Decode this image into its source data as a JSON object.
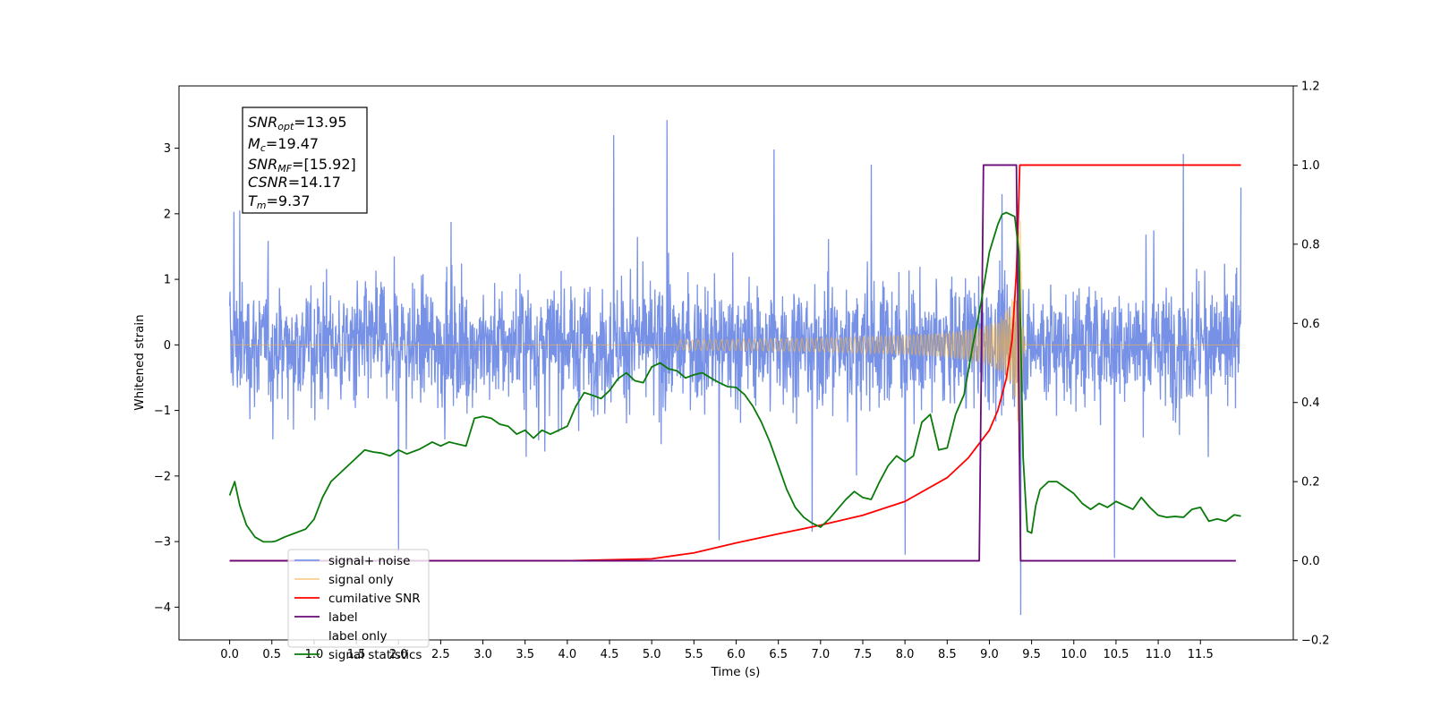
{
  "chart_data": {
    "type": "line",
    "xlabel": "Time (s)",
    "ylabel": "Whitened strain",
    "xlim": [
      -0.6,
      12.6
    ],
    "ylim": [
      -4.5,
      3.95
    ],
    "y2lim": [
      -0.2,
      1.2
    ],
    "x_ticks": [
      "0.0",
      "0.5",
      "1.0",
      "1.5",
      "2.0",
      "2.5",
      "3.0",
      "3.5",
      "4.0",
      "4.5",
      "5.0",
      "5.5",
      "6.0",
      "6.5",
      "7.0",
      "7.5",
      "8.0",
      "8.5",
      "9.0",
      "9.5",
      "10.0",
      "10.5",
      "11.0",
      "11.5"
    ],
    "y_ticks": [
      "3",
      "2",
      "1",
      "0",
      "−1",
      "−2",
      "−3",
      "−4"
    ],
    "y2_ticks": [
      "1.2",
      "1.0",
      "0.8",
      "0.6",
      "0.4",
      "0.2",
      "0.0",
      "−0.2"
    ],
    "grid": false,
    "legend_position": "lower-left",
    "info_box": {
      "snr_opt": {
        "var": "SNR",
        "sub": "opt",
        "value": "=13.95"
      },
      "mc": {
        "var": "M",
        "sub": "c",
        "value": "=19.47"
      },
      "snr_mf": {
        "var": "SNR",
        "sub": "MF",
        "value": "=[15.92]"
      },
      "csnr": {
        "var": "CSNR",
        "sub": "",
        "value": "=14.17"
      },
      "tm": {
        "var": "T",
        "sub": "m",
        "value": "=9.37"
      }
    },
    "series": [
      {
        "name": "signal+ noise",
        "color": "#6b88e4",
        "axis": "left",
        "kind": "noise",
        "x_range": [
          0.0,
          11.98
        ],
        "envelope": {
          "typical_min": -1.6,
          "typical_max": 1.6,
          "peak_max": 3.43,
          "peak_min": -4.12
        },
        "spikes": [
          [
            0.05,
            2.03
          ],
          [
            0.12,
            2.05
          ],
          [
            2.0,
            3.03
          ],
          [
            4.55,
            3.2
          ],
          [
            5.18,
            3.43
          ],
          [
            6.45,
            2.98
          ],
          [
            7.6,
            2.75
          ],
          [
            11.3,
            2.91
          ],
          [
            11.98,
            2.4
          ],
          [
            9.37,
            -4.12
          ],
          [
            10.48,
            -3.25
          ],
          [
            2.0,
            -3.15
          ],
          [
            8.0,
            -3.2
          ],
          [
            5.8,
            -2.98
          ],
          [
            6.9,
            -2.85
          ],
          [
            9.15,
            2.3
          ]
        ]
      },
      {
        "name": "signal only",
        "color": "#f5b445",
        "axis": "left",
        "kind": "chirp",
        "t_merger": 9.37,
        "peak_amplitude": 1.95,
        "x_range": [
          0.0,
          11.98
        ]
      },
      {
        "name": "cumilative SNR",
        "color": "#ff0000",
        "axis": "right",
        "points": [
          [
            0.0,
            0.0
          ],
          [
            4.0,
            0.0
          ],
          [
            5.0,
            0.005
          ],
          [
            5.5,
            0.02
          ],
          [
            6.0,
            0.045
          ],
          [
            6.5,
            0.068
          ],
          [
            7.0,
            0.09
          ],
          [
            7.5,
            0.115
          ],
          [
            8.0,
            0.15
          ],
          [
            8.5,
            0.21
          ],
          [
            8.75,
            0.26
          ],
          [
            9.0,
            0.33
          ],
          [
            9.1,
            0.38
          ],
          [
            9.2,
            0.46
          ],
          [
            9.27,
            0.56
          ],
          [
            9.32,
            0.73
          ],
          [
            9.34,
            0.85
          ],
          [
            9.36,
            1.0
          ],
          [
            11.98,
            1.0
          ]
        ]
      },
      {
        "name": "label",
        "color": "#6a0a7a",
        "axis": "right",
        "points": [
          [
            0.0,
            0.0
          ],
          [
            8.88,
            0.0
          ],
          [
            8.93,
            1.0
          ],
          [
            9.32,
            1.0
          ],
          [
            9.37,
            0.0
          ],
          [
            11.92,
            0.0
          ]
        ]
      },
      {
        "name": "label only",
        "color": "#ffffff",
        "axis": "right",
        "points": []
      },
      {
        "name": "signal statistics",
        "color": "#0a7a0a",
        "axis": "right",
        "points": [
          [
            0.0,
            0.165
          ],
          [
            0.06,
            0.2
          ],
          [
            0.12,
            0.14
          ],
          [
            0.2,
            0.09
          ],
          [
            0.3,
            0.06
          ],
          [
            0.4,
            0.048
          ],
          [
            0.5,
            0.048
          ],
          [
            0.55,
            0.05
          ],
          [
            0.65,
            0.06
          ],
          [
            0.75,
            0.068
          ],
          [
            0.9,
            0.08
          ],
          [
            1.0,
            0.105
          ],
          [
            1.1,
            0.16
          ],
          [
            1.2,
            0.2
          ],
          [
            1.35,
            0.23
          ],
          [
            1.5,
            0.26
          ],
          [
            1.6,
            0.28
          ],
          [
            1.7,
            0.275
          ],
          [
            1.8,
            0.272
          ],
          [
            1.9,
            0.265
          ],
          [
            2.0,
            0.28
          ],
          [
            2.1,
            0.27
          ],
          [
            2.25,
            0.282
          ],
          [
            2.4,
            0.3
          ],
          [
            2.5,
            0.29
          ],
          [
            2.6,
            0.3
          ],
          [
            2.7,
            0.295
          ],
          [
            2.8,
            0.29
          ],
          [
            2.9,
            0.36
          ],
          [
            3.0,
            0.365
          ],
          [
            3.1,
            0.36
          ],
          [
            3.2,
            0.345
          ],
          [
            3.3,
            0.34
          ],
          [
            3.4,
            0.32
          ],
          [
            3.5,
            0.33
          ],
          [
            3.6,
            0.31
          ],
          [
            3.7,
            0.33
          ],
          [
            3.8,
            0.32
          ],
          [
            3.9,
            0.33
          ],
          [
            4.0,
            0.34
          ],
          [
            4.1,
            0.39
          ],
          [
            4.2,
            0.425
          ],
          [
            4.3,
            0.418
          ],
          [
            4.4,
            0.41
          ],
          [
            4.5,
            0.43
          ],
          [
            4.6,
            0.46
          ],
          [
            4.7,
            0.475
          ],
          [
            4.8,
            0.455
          ],
          [
            4.9,
            0.45
          ],
          [
            5.0,
            0.49
          ],
          [
            5.1,
            0.5
          ],
          [
            5.2,
            0.485
          ],
          [
            5.3,
            0.48
          ],
          [
            5.4,
            0.462
          ],
          [
            5.5,
            0.47
          ],
          [
            5.6,
            0.475
          ],
          [
            5.7,
            0.462
          ],
          [
            5.8,
            0.45
          ],
          [
            5.9,
            0.44
          ],
          [
            6.0,
            0.438
          ],
          [
            6.1,
            0.42
          ],
          [
            6.2,
            0.39
          ],
          [
            6.3,
            0.35
          ],
          [
            6.4,
            0.3
          ],
          [
            6.5,
            0.24
          ],
          [
            6.6,
            0.18
          ],
          [
            6.7,
            0.135
          ],
          [
            6.8,
            0.11
          ],
          [
            6.9,
            0.095
          ],
          [
            7.0,
            0.085
          ],
          [
            7.1,
            0.105
          ],
          [
            7.2,
            0.13
          ],
          [
            7.3,
            0.155
          ],
          [
            7.4,
            0.175
          ],
          [
            7.5,
            0.16
          ],
          [
            7.6,
            0.155
          ],
          [
            7.7,
            0.2
          ],
          [
            7.8,
            0.24
          ],
          [
            7.9,
            0.265
          ],
          [
            8.0,
            0.25
          ],
          [
            8.1,
            0.265
          ],
          [
            8.2,
            0.35
          ],
          [
            8.3,
            0.37
          ],
          [
            8.4,
            0.28
          ],
          [
            8.5,
            0.285
          ],
          [
            8.6,
            0.37
          ],
          [
            8.7,
            0.42
          ],
          [
            8.8,
            0.54
          ],
          [
            8.9,
            0.65
          ],
          [
            9.0,
            0.78
          ],
          [
            9.1,
            0.85
          ],
          [
            9.15,
            0.875
          ],
          [
            9.2,
            0.88
          ],
          [
            9.3,
            0.87
          ],
          [
            9.35,
            0.78
          ],
          [
            9.4,
            0.26
          ],
          [
            9.45,
            0.075
          ],
          [
            9.5,
            0.07
          ],
          [
            9.55,
            0.14
          ],
          [
            9.6,
            0.18
          ],
          [
            9.7,
            0.2
          ],
          [
            9.8,
            0.2
          ],
          [
            9.9,
            0.185
          ],
          [
            10.0,
            0.17
          ],
          [
            10.1,
            0.145
          ],
          [
            10.2,
            0.13
          ],
          [
            10.3,
            0.145
          ],
          [
            10.4,
            0.135
          ],
          [
            10.5,
            0.15
          ],
          [
            10.6,
            0.14
          ],
          [
            10.7,
            0.13
          ],
          [
            10.8,
            0.16
          ],
          [
            10.9,
            0.135
          ],
          [
            11.0,
            0.115
          ],
          [
            11.1,
            0.11
          ],
          [
            11.2,
            0.112
          ],
          [
            11.3,
            0.11
          ],
          [
            11.4,
            0.13
          ],
          [
            11.5,
            0.135
          ],
          [
            11.6,
            0.1
          ],
          [
            11.7,
            0.106
          ],
          [
            11.8,
            0.1
          ],
          [
            11.9,
            0.116
          ],
          [
            11.98,
            0.113
          ]
        ]
      }
    ]
  }
}
